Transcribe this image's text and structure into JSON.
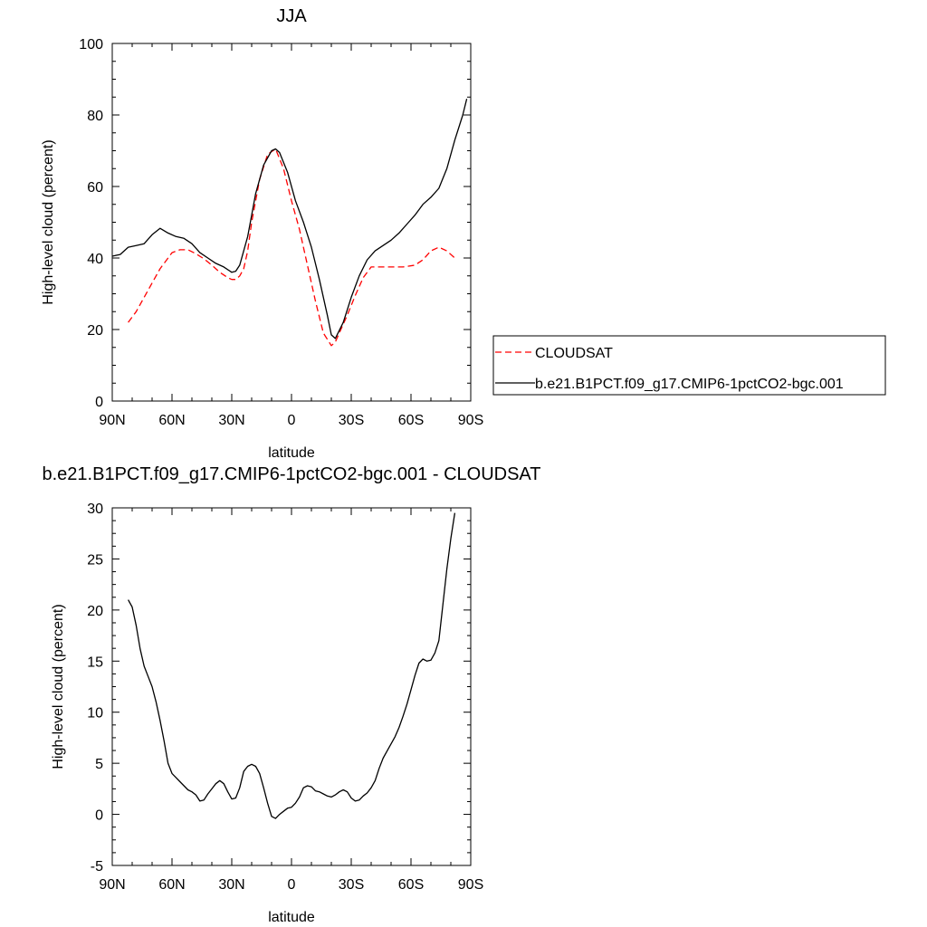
{
  "chart_data": [
    {
      "type": "line",
      "title": "JJA",
      "xlabel": "latitude",
      "ylabel": "High-level cloud (percent)",
      "xlim": [
        90,
        -90
      ],
      "ylim": [
        0,
        100
      ],
      "xticks": [
        90,
        60,
        30,
        0,
        -30,
        -60,
        -90
      ],
      "xtick_labels": [
        "90N",
        "60N",
        "30N",
        "0",
        "30S",
        "60S",
        "90S"
      ],
      "yticks": [
        0,
        20,
        40,
        60,
        80,
        100
      ],
      "ytick_labels": [
        "0",
        "20",
        "40",
        "60",
        "80",
        "100"
      ],
      "legend_position": "right",
      "series": [
        {
          "name": "CLOUDSAT",
          "color": "#ff0000",
          "dash": "dashed",
          "x": [
            82,
            78,
            72,
            66,
            60,
            56,
            52,
            48,
            44,
            40,
            36,
            32,
            30,
            28,
            26,
            24,
            22,
            20,
            16,
            12,
            8,
            4,
            0,
            -4,
            -8,
            -12,
            -16,
            -20,
            -22,
            -24,
            -28,
            -32,
            -36,
            -40,
            -44,
            -50,
            -56,
            -62,
            -66,
            -70,
            -74,
            -78,
            -82
          ],
          "y": [
            22,
            25,
            31,
            37,
            41.5,
            42.3,
            42.3,
            41.2,
            39.8,
            38,
            36,
            34.5,
            34,
            34,
            35,
            37,
            42,
            50,
            62,
            69,
            70.5,
            65,
            56,
            48,
            38,
            28,
            19,
            15.5,
            16.5,
            19,
            24,
            29.5,
            34.5,
            37.5,
            37.5,
            37.5,
            37.5,
            38,
            39.5,
            42,
            43,
            42,
            40
          ]
        },
        {
          "name": "b.e21.B1PCT.f09_g17.CMIP6-1pctCO2-bgc.001",
          "color": "#000000",
          "dash": "solid",
          "x": [
            90,
            86,
            82,
            78,
            74,
            70,
            66,
            62,
            58,
            54,
            50,
            46,
            42,
            38,
            34,
            30,
            28,
            26,
            22,
            18,
            14,
            10,
            8,
            6,
            2,
            -2,
            -6,
            -10,
            -14,
            -18,
            -20,
            -22,
            -26,
            -30,
            -34,
            -38,
            -42,
            -46,
            -50,
            -54,
            -58,
            -62,
            -66,
            -70,
            -74,
            -78,
            -82,
            -86,
            -88
          ],
          "y": [
            40.5,
            41,
            43,
            43.5,
            44,
            46.5,
            48.3,
            47,
            46,
            45.5,
            44,
            41.5,
            40,
            38.5,
            37.5,
            36,
            36.3,
            38,
            46,
            58,
            66,
            70,
            70.5,
            69.5,
            64,
            56,
            50,
            43,
            34,
            24,
            18.5,
            17.5,
            22,
            29,
            35,
            39.5,
            42,
            43.5,
            45,
            47,
            49.5,
            52,
            55,
            57,
            59.5,
            65,
            73,
            80,
            84.5
          ]
        }
      ]
    },
    {
      "type": "line",
      "title": "b.e21.B1PCT.f09_g17.CMIP6-1pctCO2-bgc.001 - CLOUDSAT",
      "xlabel": "latitude",
      "ylabel": "High-level cloud (percent)",
      "xlim": [
        90,
        -90
      ],
      "ylim": [
        -5,
        30
      ],
      "xticks": [
        90,
        60,
        30,
        0,
        -30,
        -60,
        -90
      ],
      "xtick_labels": [
        "90N",
        "60N",
        "30N",
        "0",
        "30S",
        "60S",
        "90S"
      ],
      "yticks": [
        -5,
        0,
        5,
        10,
        15,
        20,
        25,
        30
      ],
      "ytick_labels": [
        "-5",
        "0",
        "5",
        "10",
        "15",
        "20",
        "25",
        "30"
      ],
      "series": [
        {
          "color": "#000000",
          "dash": "solid",
          "x": [
            82,
            80,
            78,
            76,
            74,
            72,
            70,
            68,
            66,
            64,
            62,
            60,
            58,
            56,
            54,
            52,
            50,
            48,
            46,
            44,
            42,
            40,
            38,
            36,
            34,
            32,
            30,
            28,
            26,
            24,
            22,
            20,
            18,
            16,
            14,
            12,
            10,
            8,
            6,
            4,
            2,
            0,
            -2,
            -4,
            -6,
            -8,
            -10,
            -12,
            -14,
            -16,
            -18,
            -20,
            -22,
            -24,
            -26,
            -28,
            -30,
            -32,
            -34,
            -36,
            -38,
            -40,
            -42,
            -44,
            -46,
            -48,
            -50,
            -52,
            -54,
            -56,
            -58,
            -60,
            -62,
            -64,
            -66,
            -68,
            -70,
            -72,
            -74,
            -76,
            -78,
            -80,
            -82
          ],
          "y": [
            21,
            20.3,
            18.5,
            16.2,
            14.5,
            13.5,
            12.5,
            11,
            9.2,
            7.2,
            5,
            4,
            3.6,
            3.2,
            2.8,
            2.4,
            2.2,
            1.9,
            1.3,
            1.4,
            2,
            2.5,
            3,
            3.3,
            3,
            2.2,
            1.5,
            1.6,
            2.6,
            4.2,
            4.7,
            4.9,
            4.7,
            4,
            2.6,
            1.1,
            -0.2,
            -0.4,
            0,
            0.3,
            0.6,
            0.7,
            1.1,
            1.7,
            2.6,
            2.8,
            2.7,
            2.3,
            2.2,
            2,
            1.8,
            1.7,
            1.9,
            2.2,
            2.4,
            2.2,
            1.6,
            1.3,
            1.4,
            1.8,
            2.1,
            2.6,
            3.3,
            4.5,
            5.5,
            6.2,
            6.9,
            7.6,
            8.5,
            9.6,
            10.8,
            12.2,
            13.6,
            14.8,
            15.2,
            15,
            15.1,
            15.8,
            17,
            20.5,
            24,
            27,
            29.5
          ]
        }
      ]
    }
  ]
}
